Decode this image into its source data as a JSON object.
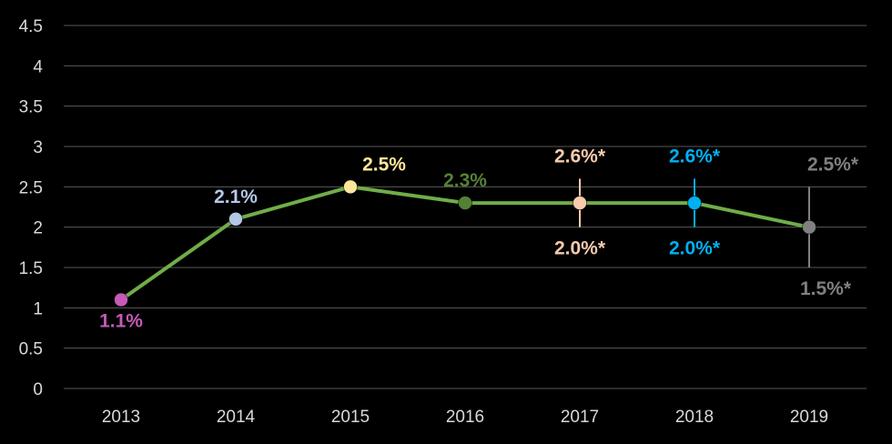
{
  "chart_data": {
    "type": "line",
    "categories": [
      "2013",
      "2014",
      "2015",
      "2016",
      "2017",
      "2018",
      "2019"
    ],
    "series": [
      {
        "values": [
          1.1,
          2.1,
          2.5,
          2.3,
          2.3,
          2.3,
          2.0
        ],
        "color": "#70ad47"
      }
    ],
    "point_colors": [
      "#c55ab8",
      "#b4c7e7",
      "#ffe699",
      "#548235",
      "#f8cbad",
      "#00b0f0",
      "#808080"
    ],
    "error_ranges": [
      null,
      null,
      null,
      null,
      [
        2.0,
        2.6
      ],
      [
        2.0,
        2.6
      ],
      [
        1.5,
        2.5
      ]
    ],
    "labels": [
      {
        "x": "2013",
        "text": "1.1%",
        "pos": "below"
      },
      {
        "x": "2014",
        "text": "2.1%",
        "pos": "above"
      },
      {
        "x": "2015",
        "text": "2.5%",
        "pos": "above-right"
      },
      {
        "x": "2016",
        "text": "2.3%",
        "pos": "above"
      },
      {
        "x": "2017",
        "text": "2.6%*",
        "pos": "above"
      },
      {
        "x": "2017",
        "text": "2.0%*",
        "pos": "below"
      },
      {
        "x": "2018",
        "text": "2.6%*",
        "pos": "above"
      },
      {
        "x": "2018",
        "text": "2.0%*",
        "pos": "below"
      },
      {
        "x": "2019",
        "text": "2.5%*",
        "pos": "above-right"
      },
      {
        "x": "2019",
        "text": "1.5%*",
        "pos": "below-right"
      }
    ],
    "yticks": [
      "0",
      "0.5",
      "1",
      "1.5",
      "2",
      "2.5",
      "3",
      "3.5",
      "4",
      "4.5"
    ],
    "ylim": [
      0,
      4.5
    ],
    "grid": true,
    "background": "#000000"
  }
}
